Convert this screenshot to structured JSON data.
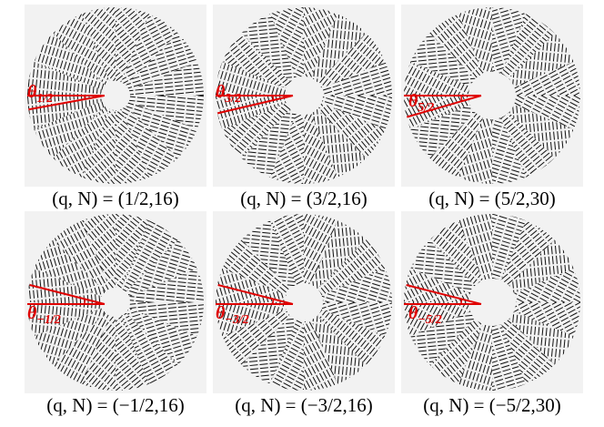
{
  "panels": [
    {
      "theta_label": {
        "symbol": "θ",
        "subscript": "1/2"
      },
      "caption": "(q, N) = (1/2,16)"
    },
    {
      "theta_label": {
        "symbol": "θ",
        "subscript": "3/2"
      },
      "caption": "(q, N) = (3/2,16)"
    },
    {
      "theta_label": {
        "symbol": "θ",
        "subscript": "5/2"
      },
      "caption": "(q, N) = (5/2,30)"
    },
    {
      "theta_label": {
        "symbol": "θ",
        "subscript": "−1/2"
      },
      "caption": "(q, N) = (−1/2,16)"
    },
    {
      "theta_label": {
        "symbol": "θ",
        "subscript": "−3/2"
      },
      "caption": "(q, N) = (−3/2,16)"
    },
    {
      "theta_label": {
        "symbol": "θ",
        "subscript": "−5/2"
      },
      "caption": "(q, N) = (−5/2,30)"
    }
  ]
}
